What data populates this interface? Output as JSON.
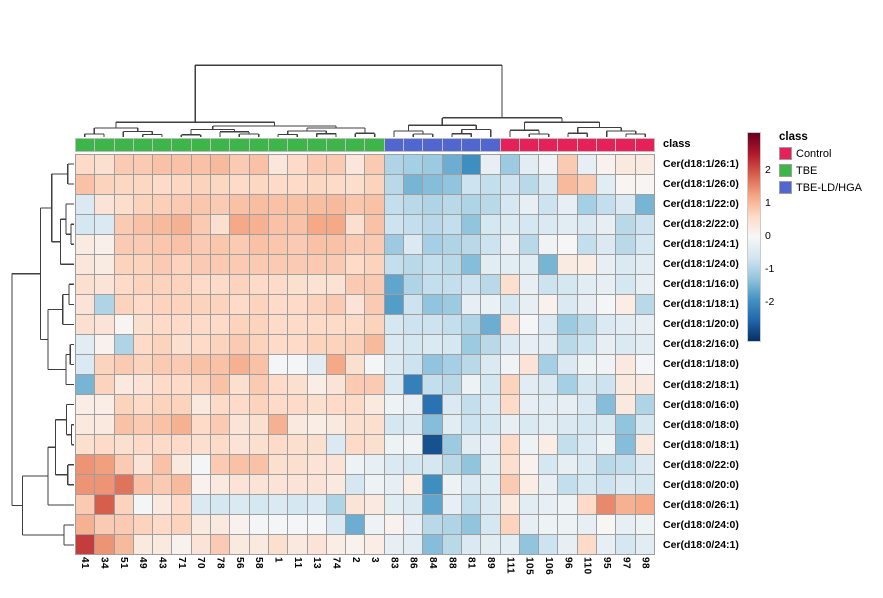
{
  "figure": {
    "annotation_label": "class",
    "colors": {
      "background": "#ffffff",
      "grid_line": "#9e9e9e",
      "annotation_grid_line": "#bdbdbd",
      "dendrogram_line": "#3f3f3f"
    }
  },
  "classes": [
    {
      "label": "Control",
      "color": "#e6215a"
    },
    {
      "label": "TBE",
      "color": "#3eb549"
    },
    {
      "label": "TBE-LD/HGA",
      "color": "#5266d0"
    }
  ],
  "legend": {
    "class_title": "class",
    "scale_ticks": [
      {
        "label": "2",
        "value": 2
      },
      {
        "label": "1",
        "value": 1
      },
      {
        "label": "0",
        "value": 0
      },
      {
        "label": "-1",
        "value": -1
      },
      {
        "label": "-2",
        "value": -2
      }
    ]
  },
  "chart_data": {
    "type": "heatmap",
    "value_scale": "z-score",
    "scale_domain": [
      -3.2,
      3.15
    ],
    "scale_colors": [
      "#053061",
      "#2166ac",
      "#4393c3",
      "#92c5de",
      "#d1e5f0",
      "#f7f7f7",
      "#fddbc7",
      "#f4a582",
      "#d6604d",
      "#b2182b",
      "#67001f"
    ],
    "columns": [
      "41",
      "34",
      "51",
      "49",
      "43",
      "71",
      "70",
      "78",
      "56",
      "58",
      "1",
      "11",
      "13",
      "74",
      "2",
      "3",
      "83",
      "86",
      "84",
      "88",
      "81",
      "89",
      "111",
      "105",
      "106",
      "96",
      "110",
      "95",
      "97",
      "98"
    ],
    "column_classes": [
      "TBE",
      "TBE",
      "TBE",
      "TBE",
      "TBE",
      "TBE",
      "TBE",
      "TBE",
      "TBE",
      "TBE",
      "TBE",
      "TBE",
      "TBE",
      "TBE",
      "TBE",
      "TBE",
      "TBE-LD/HGA",
      "TBE-LD/HGA",
      "TBE-LD/HGA",
      "TBE-LD/HGA",
      "TBE-LD/HGA",
      "TBE-LD/HGA",
      "Control",
      "Control",
      "Control",
      "Control",
      "Control",
      "Control",
      "Control",
      "Control"
    ],
    "rows": [
      "Cer(d18:1/26:1)",
      "Cer(d18:1/26:0)",
      "Cer(d18:1/22:0)",
      "Cer(d18:2/22:0)",
      "Cer(d18:1/24:1)",
      "Cer(d18:1/24:0)",
      "Cer(d18:1/16:0)",
      "Cer(d18:1/18:1)",
      "Cer(d18:1/20:0)",
      "Cer(d18:2/16:0)",
      "Cer(d18:1/18:0)",
      "Cer(d18:2/18:1)",
      "Cer(d18:0/16:0)",
      "Cer(d18:0/18:0)",
      "Cer(d18:0/18:1)",
      "Cer(d18:0/22:0)",
      "Cer(d18:0/20:0)",
      "Cer(d18:0/26:1)",
      "Cer(d18:0/24:0)",
      "Cer(d18:0/24:1)"
    ],
    "values": [
      [
        0.6,
        0.5,
        0.8,
        0.8,
        0.9,
        0.9,
        0.9,
        1.0,
        0.8,
        0.9,
        0.35,
        0.6,
        0.8,
        0.8,
        0.35,
        0.8,
        -1.0,
        -1.1,
        -1.2,
        -1.6,
        -2.0,
        -0.3,
        -1.2,
        -0.4,
        -0.15,
        0.8,
        -0.3,
        0.1,
        0.3,
        0.25
      ],
      [
        0.9,
        0.7,
        0.65,
        0.65,
        0.6,
        0.65,
        0.7,
        0.65,
        0.6,
        0.65,
        0.6,
        0.6,
        0.65,
        0.6,
        0.55,
        0.7,
        -0.9,
        -1.5,
        -1.4,
        -1.3,
        -0.7,
        -0.8,
        -0.7,
        -0.9,
        -0.5,
        1.0,
        0.8,
        -0.4,
        0.05,
        0.05
      ],
      [
        -0.5,
        0.4,
        0.55,
        0.7,
        0.75,
        0.8,
        0.85,
        0.8,
        0.9,
        0.95,
        0.9,
        0.9,
        0.95,
        1.0,
        0.85,
        0.9,
        -0.8,
        -0.9,
        -1.0,
        -0.9,
        -1.0,
        -0.9,
        -0.6,
        -0.3,
        -0.7,
        -0.3,
        -1.1,
        -0.8,
        -0.5,
        -1.5
      ],
      [
        -0.6,
        -0.5,
        0.8,
        0.9,
        1.0,
        1.1,
        0.8,
        0.5,
        1.2,
        1.1,
        0.9,
        0.9,
        1.2,
        1.2,
        0.5,
        0.9,
        -0.7,
        -0.8,
        -0.9,
        -0.8,
        -1.3,
        -0.6,
        -0.5,
        -0.6,
        -0.5,
        -0.4,
        -0.5,
        -0.3,
        -0.9,
        -0.7
      ],
      [
        0.25,
        0.15,
        0.8,
        0.8,
        0.85,
        0.9,
        0.8,
        0.85,
        0.8,
        0.9,
        0.85,
        0.8,
        0.9,
        0.9,
        0.8,
        0.8,
        -1.2,
        -0.5,
        -1.1,
        -1.0,
        -0.9,
        -0.7,
        -0.3,
        -0.9,
        -0.15,
        -0.05,
        -0.8,
        -0.5,
        -0.9,
        -0.6
      ],
      [
        0.35,
        0.25,
        0.7,
        0.7,
        0.8,
        0.7,
        0.8,
        0.8,
        0.8,
        0.8,
        0.8,
        0.8,
        0.8,
        0.8,
        0.6,
        0.7,
        -0.8,
        -0.9,
        -0.8,
        -0.9,
        -1.4,
        -0.4,
        -0.4,
        -0.4,
        -1.5,
        0.25,
        0.2,
        -0.3,
        -0.5,
        -0.4
      ],
      [
        0.5,
        0.4,
        0.6,
        0.7,
        0.7,
        0.7,
        0.6,
        0.6,
        0.7,
        0.6,
        0.6,
        0.5,
        0.45,
        0.45,
        0.8,
        0.8,
        -1.7,
        -1.0,
        -0.8,
        -0.8,
        -0.7,
        -0.9,
        0.5,
        -0.3,
        -0.7,
        -0.6,
        -0.4,
        -0.3,
        -0.6,
        -0.3
      ],
      [
        0.4,
        -1.0,
        0.7,
        0.6,
        0.7,
        0.7,
        0.7,
        0.7,
        0.6,
        0.7,
        0.6,
        0.6,
        0.7,
        0.8,
        0.4,
        0.8,
        -1.8,
        -0.7,
        -1.3,
        -1.2,
        -0.3,
        -0.25,
        -0.6,
        -0.3,
        0.1,
        -0.5,
        -0.3,
        -0.1,
        0.2,
        -0.9
      ],
      [
        0.5,
        0.4,
        0.05,
        0.5,
        0.6,
        0.6,
        0.6,
        0.6,
        0.7,
        0.7,
        0.6,
        0.6,
        0.6,
        0.6,
        0.6,
        0.7,
        -0.6,
        -0.7,
        -0.7,
        -0.8,
        -1.0,
        -1.6,
        0.4,
        -0.1,
        -0.5,
        -1.2,
        -0.9,
        -0.5,
        -0.4,
        -0.3
      ],
      [
        -0.4,
        0.1,
        -1.0,
        0.6,
        0.7,
        0.5,
        0.6,
        0.7,
        0.8,
        0.7,
        0.6,
        0.6,
        0.7,
        0.7,
        0.75,
        1.0,
        -0.5,
        -0.6,
        -0.5,
        -0.6,
        -1.2,
        -0.9,
        -0.5,
        -0.3,
        -0.4,
        -0.9,
        -0.7,
        -0.3,
        -0.5,
        -0.4
      ],
      [
        -0.5,
        0.7,
        0.8,
        0.7,
        0.8,
        0.8,
        0.9,
        0.9,
        1.1,
        0.9,
        -0.1,
        -0.1,
        -0.4,
        1.2,
        0.5,
        -0.1,
        -0.5,
        -0.7,
        -1.3,
        -1.1,
        -0.9,
        -0.5,
        -0.15,
        0.4,
        -1.1,
        -0.5,
        -0.2,
        -0.15,
        0.3,
        -0.1
      ],
      [
        -1.5,
        0.7,
        0.3,
        0.4,
        0.6,
        0.6,
        0.7,
        0.9,
        0.5,
        0.8,
        0.6,
        0.5,
        0.2,
        0.4,
        0.8,
        0.8,
        -0.5,
        -2.2,
        -0.8,
        -0.9,
        -0.2,
        -0.6,
        0.7,
        -0.4,
        -0.5,
        -1.1,
        -0.6,
        -0.7,
        0.3,
        0.3
      ],
      [
        0.2,
        0.2,
        0.7,
        0.6,
        0.7,
        0.7,
        0.3,
        0.6,
        0.6,
        0.7,
        0.6,
        0.6,
        0.5,
        0.6,
        0.6,
        0.3,
        -0.2,
        -0.3,
        -2.4,
        -0.5,
        -0.8,
        -0.5,
        0.6,
        -0.3,
        -0.4,
        -0.3,
        -0.5,
        -1.4,
        0.3,
        -1.0
      ],
      [
        0.3,
        0.3,
        0.9,
        0.8,
        0.9,
        1.1,
        0.6,
        0.8,
        0.4,
        0.5,
        1.1,
        0.3,
        0.2,
        0.3,
        0.5,
        0.5,
        -0.6,
        -0.5,
        -1.4,
        -0.4,
        -0.7,
        -0.6,
        -0.3,
        -0.5,
        -0.4,
        -0.5,
        -0.6,
        -0.5,
        -1.3,
        -0.6
      ],
      [
        0.5,
        0.6,
        0.5,
        0.6,
        0.6,
        0.6,
        0.5,
        0.6,
        0.4,
        0.5,
        0.6,
        0.5,
        0.5,
        -0.5,
        0.6,
        0.5,
        -0.2,
        -0.15,
        -2.8,
        -1.2,
        -0.4,
        -0.3,
        0.6,
        -0.2,
        0.2,
        -0.8,
        -0.5,
        -0.2,
        -1.4,
        0.3
      ],
      [
        1.4,
        1.3,
        0.8,
        0.4,
        0.9,
        0.3,
        -0.1,
        0.8,
        0.9,
        0.9,
        0.5,
        0.5,
        0.4,
        0.4,
        -0.2,
        -0.3,
        -0.5,
        -0.6,
        -0.6,
        -0.9,
        -1.3,
        -0.4,
        0.5,
        0.1,
        -0.6,
        -0.3,
        -0.5,
        -0.9,
        -0.8,
        -0.5
      ],
      [
        1.4,
        1.4,
        1.7,
        0.9,
        0.8,
        1.0,
        0.1,
        0.3,
        0.4,
        0.4,
        0.4,
        0.4,
        0.4,
        0.3,
        -0.6,
        -0.2,
        -0.3,
        0.2,
        -2.0,
        -0.2,
        -0.5,
        -0.4,
        0.8,
        0.2,
        -0.3,
        -0.8,
        -0.6,
        -0.7,
        -0.5,
        -0.6
      ],
      [
        0.8,
        1.9,
        0.7,
        -0.1,
        0.3,
        0.6,
        -0.5,
        -0.6,
        -0.5,
        -0.6,
        -0.5,
        -0.6,
        -0.5,
        -1.0,
        0.4,
        0.3,
        -0.4,
        -0.5,
        -1.7,
        -0.3,
        -0.8,
        -0.5,
        0.3,
        -0.4,
        -0.3,
        -0.2,
        0.6,
        1.5,
        1.1,
        1.2
      ],
      [
        1.1,
        0.8,
        0.8,
        0.7,
        0.6,
        0.7,
        0.3,
        0.3,
        0.1,
        -0.1,
        -0.1,
        -0.1,
        -0.1,
        -0.5,
        -1.6,
        -0.2,
        0.1,
        -0.3,
        -0.9,
        -1.0,
        -1.3,
        -0.6,
        0.7,
        -0.3,
        -0.2,
        -0.2,
        -0.3,
        0.0,
        -0.3,
        -0.2
      ],
      [
        2.2,
        1.4,
        1.0,
        0.3,
        0.3,
        0.1,
        0.4,
        0.8,
        0.3,
        0.3,
        0.5,
        0.3,
        0.4,
        0.2,
        0.1,
        0.2,
        -0.3,
        -0.4,
        -1.4,
        -0.9,
        -0.5,
        -0.4,
        -0.4,
        -1.3,
        -0.7,
        -0.3,
        0.6,
        -0.3,
        -0.6,
        -0.4
      ]
    ],
    "col_dendrogram": {
      "h": 0.97,
      "c": [
        {
          "h": 0.2,
          "c": [
            {
              "h": 0.12,
              "c": [
                {
                  "h": 0.04,
                  "c": [
                    0,
                    1
                  ]
                },
                {
                  "h": 0.075,
                  "c": [
                    2,
                    {
                      "h": 0.035,
                      "c": [
                        3,
                        4
                      ]
                    }
                  ]
                }
              ]
            },
            {
              "h": 0.15,
              "c": [
                {
                  "h": 0.1,
                  "c": [
                    {
                      "h": 0.03,
                      "c": [
                        5,
                        6
                      ]
                    },
                    {
                      "h": 0.07,
                      "c": [
                        7,
                        {
                          "h": 0.04,
                          "c": [
                            8,
                            9
                          ]
                        }
                      ]
                    }
                  ]
                },
                {
                  "h": 0.12,
                  "c": [
                    {
                      "h": 0.08,
                      "c": [
                        {
                          "h": 0.035,
                          "c": [
                            10,
                            11
                          ]
                        },
                        {
                          "h": 0.045,
                          "c": [
                            12,
                            13
                          ]
                        }
                      ]
                    },
                    {
                      "h": 0.05,
                      "c": [
                        14,
                        15
                      ]
                    }
                  ]
                }
              ]
            }
          ]
        },
        {
          "h": 0.26,
          "c": [
            {
              "h": 0.16,
              "c": [
                {
                  "h": 0.08,
                  "c": [
                    16,
                    {
                      "h": 0.04,
                      "c": [
                        17,
                        18
                      ]
                    }
                  ]
                },
                {
                  "h": 0.1,
                  "c": [
                    {
                      "h": 0.045,
                      "c": [
                        19,
                        20
                      ]
                    },
                    21
                  ]
                }
              ]
            },
            {
              "h": 0.2,
              "c": [
                {
                  "h": 0.09,
                  "c": [
                    22,
                    {
                      "h": 0.04,
                      "c": [
                        23,
                        24
                      ]
                    }
                  ]
                },
                {
                  "h": 0.13,
                  "c": [
                    {
                      "h": 0.05,
                      "c": [
                        25,
                        26
                      ]
                    },
                    {
                      "h": 0.08,
                      "c": [
                        27,
                        {
                          "h": 0.04,
                          "c": [
                            28,
                            29
                          ]
                        }
                      ]
                    }
                  ]
                }
              ]
            }
          ]
        }
      ]
    },
    "row_dendrogram": {
      "h": 1.0,
      "c": [
        {
          "h": 0.54,
          "c": [
            {
              "h": 0.36,
              "c": [
                {
                  "h": 0.1,
                  "c": [
                    0,
                    1
                  ]
                },
                {
                  "h": 0.22,
                  "c": [
                    {
                      "h": 0.13,
                      "c": [
                        2,
                        {
                          "h": 0.05,
                          "c": [
                            3,
                            4
                          ]
                        }
                      ]
                    },
                    5
                  ]
                }
              ]
            },
            {
              "h": 0.42,
              "c": [
                {
                  "h": 0.18,
                  "c": [
                    {
                      "h": 0.08,
                      "c": [
                        6,
                        7
                      ]
                    },
                    8
                  ]
                },
                {
                  "h": 0.13,
                  "c": [
                    {
                      "h": 0.06,
                      "c": [
                        9,
                        10
                      ]
                    },
                    11
                  ]
                }
              ]
            }
          ]
        },
        {
          "h": 0.83,
          "c": [
            {
              "h": 0.42,
              "c": [
                {
                  "h": 0.3,
                  "c": [
                    {
                      "h": 0.12,
                      "c": [
                        12,
                        {
                          "h": 0.04,
                          "c": [
                            13,
                            14
                          ]
                        }
                      ]
                    },
                    {
                      "h": 0.1,
                      "c": [
                        15,
                        16
                      ]
                    }
                  ]
                },
                17
              ]
            },
            {
              "h": 0.16,
              "c": [
                18,
                19
              ]
            }
          ]
        }
      ]
    }
  }
}
